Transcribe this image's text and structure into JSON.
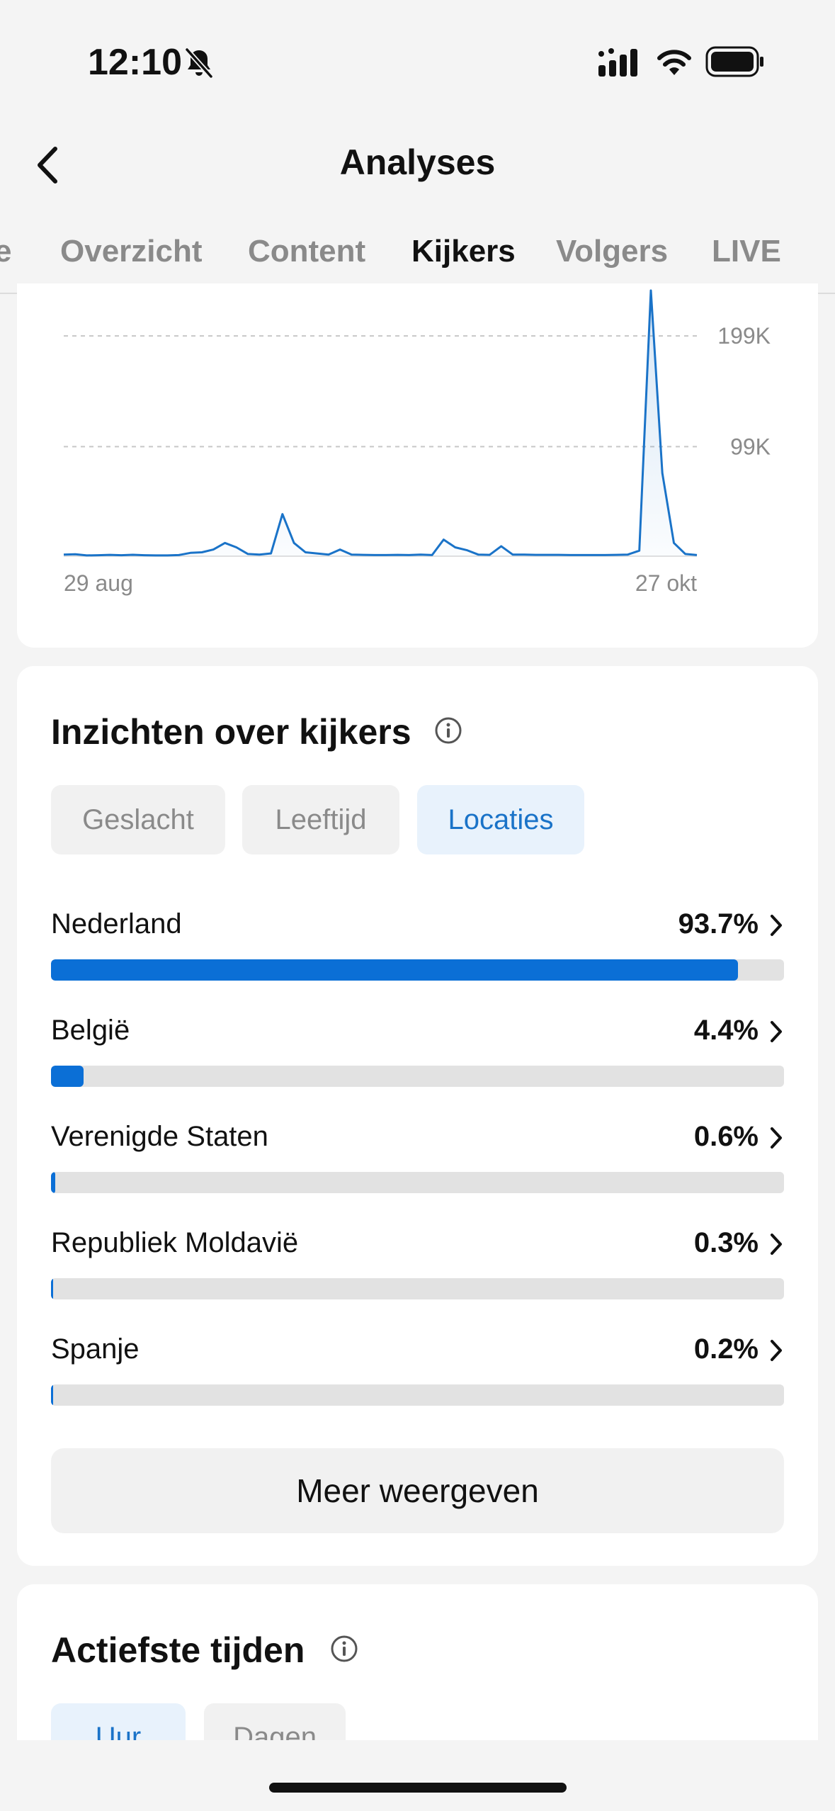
{
  "status_bar": {
    "time": "12:10"
  },
  "nav": {
    "title": "Analyses"
  },
  "tabs": [
    {
      "label": "e",
      "active": false
    },
    {
      "label": "Overzicht",
      "active": false
    },
    {
      "label": "Content",
      "active": false
    },
    {
      "label": "Kijkers",
      "active": true
    },
    {
      "label": "Volgers",
      "active": false
    },
    {
      "label": "LIVE",
      "active": false
    }
  ],
  "chart_data": {
    "type": "area",
    "x_start_label": "29 aug",
    "x_end_label": "27 okt",
    "y_tick_labels": [
      "199K",
      "99K"
    ],
    "y_ticks": [
      199000,
      99000
    ],
    "ylim": [
      0,
      240000
    ],
    "grid": true,
    "color": "#1a73c8",
    "series": [
      {
        "values": [
          1500,
          1800,
          700,
          900,
          1200,
          900,
          1300,
          900,
          700,
          700,
          1000,
          3000,
          3500,
          6000,
          12000,
          8000,
          2000,
          1500,
          2500,
          38000,
          12000,
          3500,
          2500,
          1500,
          6000,
          1500,
          1200,
          1000,
          1000,
          1200,
          1000,
          1500,
          1000,
          15000,
          8000,
          5500,
          1500,
          1200,
          9000,
          1500,
          1500,
          1200,
          1200,
          1200,
          1000,
          1000,
          1000,
          1000,
          1200,
          1500,
          5000,
          240000,
          75000,
          12000,
          2000,
          1000
        ]
      }
    ]
  },
  "insights": {
    "title": "Inzichten over kijkers",
    "segments": [
      {
        "label": "Geslacht",
        "active": false
      },
      {
        "label": "Leeftijd",
        "active": false
      },
      {
        "label": "Locaties",
        "active": true
      }
    ],
    "locations": [
      {
        "name": "Nederland",
        "pct_label": "93.7%",
        "pct": 93.7
      },
      {
        "name": "België",
        "pct_label": "4.4%",
        "pct": 4.4
      },
      {
        "name": "Verenigde Staten",
        "pct_label": "0.6%",
        "pct": 0.6
      },
      {
        "name": "Republiek Moldavië",
        "pct_label": "0.3%",
        "pct": 0.3
      },
      {
        "name": "Spanje",
        "pct_label": "0.2%",
        "pct": 0.2
      }
    ],
    "more_label": "Meer weergeven"
  },
  "active_times": {
    "title": "Actiefste tijden",
    "segments": [
      {
        "label": "Uur",
        "active": true
      },
      {
        "label": "Dagen",
        "active": false
      }
    ]
  },
  "colors": {
    "accent": "#0b6fd6",
    "accent_text": "#1a73c8",
    "active_segment_bg": "#e8f2fc"
  }
}
